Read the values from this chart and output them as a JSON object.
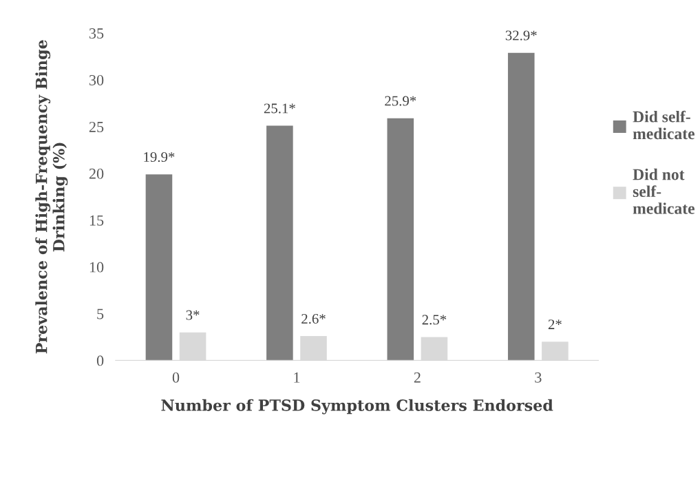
{
  "chart_data": {
    "type": "bar",
    "xlabel": "Number of PTSD Symptom Clusters Endorsed",
    "ylabel": "Prevalence of High-Frequency Binge\nDrinking (%)",
    "categories": [
      "0",
      "1",
      "2",
      "3"
    ],
    "series": [
      {
        "name": "Did self-\nmedicate",
        "color": "#7f7f7f",
        "values": [
          19.9,
          25.1,
          25.9,
          32.9
        ],
        "value_labels": [
          "19.9*",
          "25.1*",
          "25.9*",
          "32.9*"
        ]
      },
      {
        "name": "Did not\nself-\nmedicate",
        "color": "#d9d9d9",
        "values": [
          3,
          2.6,
          2.5,
          2
        ],
        "value_labels": [
          "3*",
          "2.6*",
          "2.5*",
          "2*"
        ]
      }
    ],
    "ylim": [
      0,
      35
    ],
    "yticks": [
      0,
      5,
      10,
      15,
      20,
      25,
      30,
      35
    ],
    "grid": false,
    "legend": "right"
  }
}
